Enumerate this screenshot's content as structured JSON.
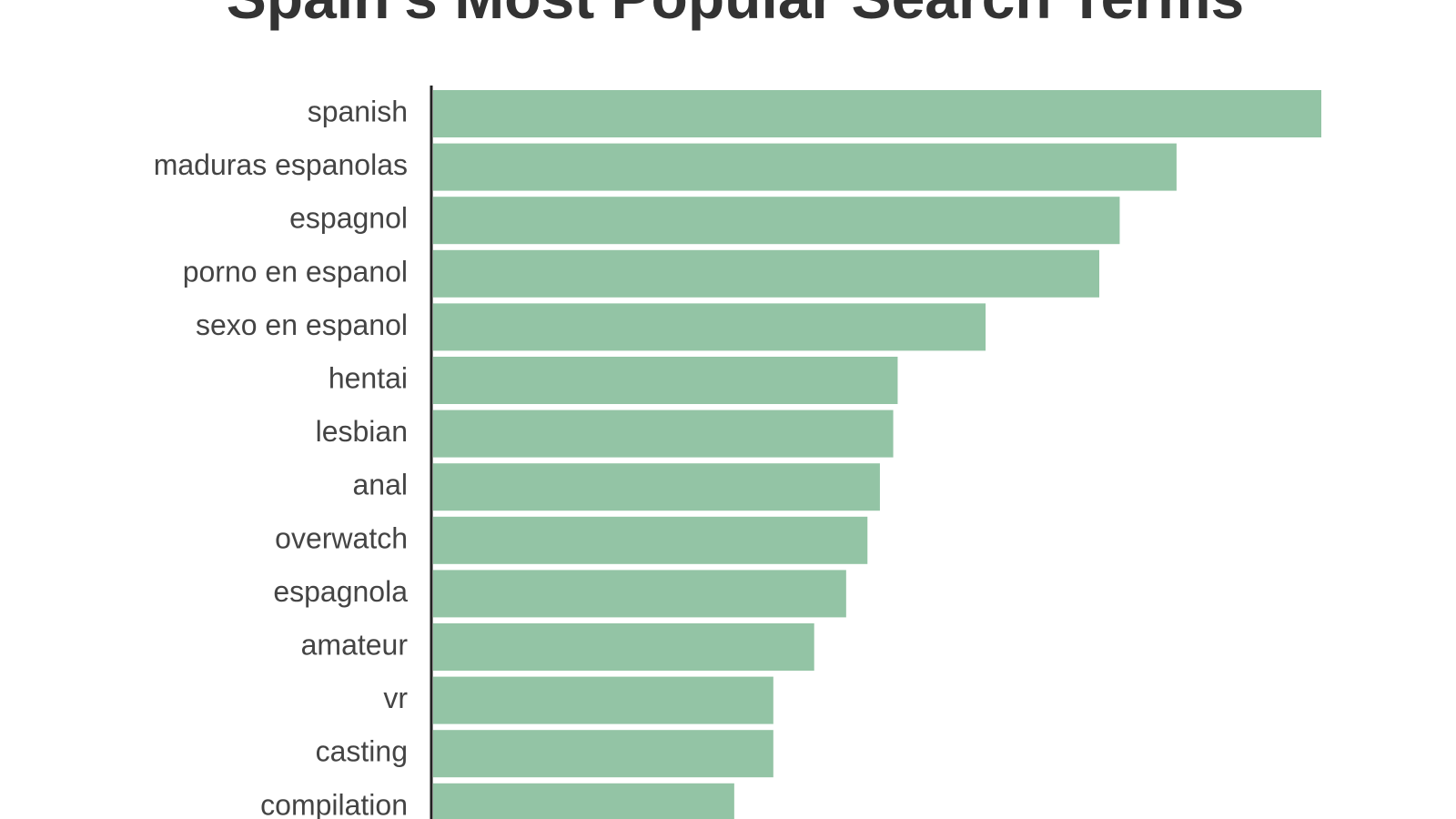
{
  "chart_data": {
    "type": "hbar",
    "title": "Spain's Most Popular Search Terms",
    "categories": [
      "spanish",
      "maduras espanolas",
      "espagnol",
      "porno en espanol",
      "sexo en espanol",
      "hentai",
      "lesbian",
      "anal",
      "overwatch",
      "espagnola",
      "amateur",
      "vr",
      "casting",
      "compilation"
    ],
    "values": [
      100,
      83.7,
      77.3,
      75,
      62.2,
      52.3,
      51.8,
      50.3,
      48.9,
      46.5,
      42.9,
      38.3,
      38.3,
      33.9
    ],
    "color": "#93c4a5"
  }
}
